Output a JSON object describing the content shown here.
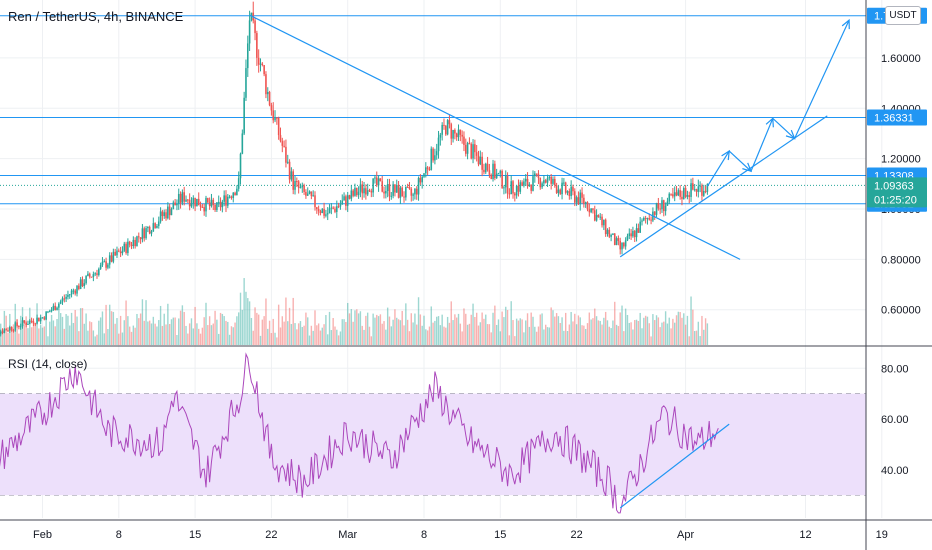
{
  "chart_title": "Ren / TetherUS, 4h, BINANCE",
  "currency": "USDT",
  "rsi_title": "RSI (14, close)",
  "colors": {
    "up": "#26a69a",
    "down": "#ef5350",
    "drawing": "#2196f3",
    "rsi_line": "#ab47bc",
    "rsi_band": "#ede0fb",
    "current_price": "#26a69a",
    "grid": "#eef0f3",
    "axis_text": "#131722"
  },
  "chart_data": [
    {
      "type": "candlestick",
      "title": "Ren / TetherUS, 4h, BINANCE",
      "x_ticks": [
        "Feb",
        "8",
        "15",
        "22",
        "Mar",
        "8",
        "15",
        "22",
        "Apr",
        "12",
        "19"
      ],
      "y_ticks": [
        0.6,
        0.8,
        1.0,
        1.2,
        1.4,
        1.6
      ],
      "ylim": [
        0.46,
        1.83
      ],
      "price_labels": [
        {
          "value": 1.76768,
          "label": "1.76768"
        },
        {
          "value": 1.36331,
          "label": "1.36331"
        },
        {
          "value": 1.13308,
          "label": "1.13308"
        },
        {
          "value": 1.02092,
          "label": "1.02092"
        }
      ],
      "current_price": {
        "value": 1.09363,
        "label": "1.09363",
        "countdown": "01:25:20"
      },
      "horizontal_levels": [
        1.76768,
        1.36331,
        1.13308,
        1.02092
      ],
      "key_points": [
        {
          "date": "Jan 27",
          "close": 0.5
        },
        {
          "date": "Feb 1",
          "close": 0.57
        },
        {
          "date": "Feb 5",
          "close": 0.72
        },
        {
          "date": "Feb 9",
          "close": 0.86
        },
        {
          "date": "Feb 14",
          "close": 1.05
        },
        {
          "date": "Feb 17",
          "close": 1.0
        },
        {
          "date": "Feb 19",
          "close": 1.1
        },
        {
          "date": "Feb 20",
          "close": 1.76
        },
        {
          "date": "Feb 22",
          "close": 1.4
        },
        {
          "date": "Feb 24",
          "close": 1.1
        },
        {
          "date": "Feb 27",
          "close": 0.98
        },
        {
          "date": "Mar 3",
          "close": 1.1
        },
        {
          "date": "Mar 7",
          "close": 1.05
        },
        {
          "date": "Mar 10",
          "close": 1.33
        },
        {
          "date": "Mar 13",
          "close": 1.2
        },
        {
          "date": "Mar 16",
          "close": 1.08
        },
        {
          "date": "Mar 19",
          "close": 1.12
        },
        {
          "date": "Mar 23",
          "close": 1.02
        },
        {
          "date": "Mar 26",
          "close": 0.84
        },
        {
          "date": "Mar 29",
          "close": 0.99
        },
        {
          "date": "Apr 1",
          "close": 1.07
        },
        {
          "date": "Apr 3",
          "close": 1.09
        }
      ],
      "drawings": [
        {
          "kind": "trendline",
          "from": {
            "date": "Feb 20",
            "value": 1.77
          },
          "to": {
            "date": "Apr 6",
            "value": 0.8
          }
        },
        {
          "kind": "trendline",
          "from": {
            "date": "Mar 26",
            "value": 0.81
          },
          "to": {
            "date": "Apr 14",
            "value": 1.37
          }
        },
        {
          "kind": "projection",
          "points": [
            {
              "date": "Apr 3",
              "value": 1.09
            },
            {
              "date": "Apr 5",
              "value": 1.23
            },
            {
              "date": "Apr 7",
              "value": 1.15
            },
            {
              "date": "Apr 9",
              "value": 1.36
            },
            {
              "date": "Apr 11",
              "value": 1.28
            },
            {
              "date": "Apr 16",
              "value": 1.75
            }
          ]
        }
      ],
      "grid": true
    },
    {
      "type": "line",
      "title": "RSI (14, close)",
      "y_ticks": [
        40,
        60,
        80
      ],
      "ylim": [
        21,
        88
      ],
      "band": [
        30,
        70
      ],
      "key_points": [
        {
          "date": "Jan 27",
          "value": 40
        },
        {
          "date": "Feb 1",
          "value": 62
        },
        {
          "date": "Feb 4",
          "value": 80
        },
        {
          "date": "Feb 7",
          "value": 55
        },
        {
          "date": "Feb 12",
          "value": 50
        },
        {
          "date": "Feb 13",
          "value": 70
        },
        {
          "date": "Feb 16",
          "value": 38
        },
        {
          "date": "Feb 19",
          "value": 68
        },
        {
          "date": "Feb 20",
          "value": 85
        },
        {
          "date": "Feb 22",
          "value": 44
        },
        {
          "date": "Feb 25",
          "value": 35
        },
        {
          "date": "Mar 1",
          "value": 55
        },
        {
          "date": "Mar 5",
          "value": 44
        },
        {
          "date": "Mar 9",
          "value": 72
        },
        {
          "date": "Mar 12",
          "value": 52
        },
        {
          "date": "Mar 16",
          "value": 38
        },
        {
          "date": "Mar 20",
          "value": 55
        },
        {
          "date": "Mar 25",
          "value": 35
        },
        {
          "date": "Mar 26",
          "value": 25
        },
        {
          "date": "Mar 30",
          "value": 62
        },
        {
          "date": "Apr 2",
          "value": 50
        },
        {
          "date": "Apr 4",
          "value": 56
        }
      ],
      "trendline": {
        "from": {
          "date": "Mar 26",
          "value": 25
        },
        "to": {
          "date": "Apr 5",
          "value": 58
        }
      },
      "grid": true
    }
  ]
}
